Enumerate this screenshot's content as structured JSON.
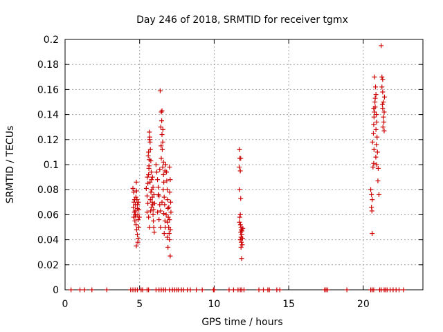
{
  "chart_data": {
    "type": "scatter",
    "title": "Day 246 of 2018, SRMTID for receiver tgmx",
    "xlabel": "GPS time / hours",
    "ylabel": "SRMTID / TECUs",
    "xlim": [
      0,
      24
    ],
    "ylim": [
      0,
      0.2
    ],
    "xticks": [
      0,
      5,
      10,
      15,
      20
    ],
    "xtick_labels": [
      "0",
      "5",
      "10",
      "15",
      "20"
    ],
    "yticks": [
      0,
      0.02,
      0.04,
      0.06,
      0.08,
      0.1,
      0.12,
      0.14,
      0.16,
      0.18,
      0.2
    ],
    "ytick_labels": [
      "0",
      "0.02",
      "0.04",
      "0.06",
      "0.08",
      "0.1",
      "0.12",
      "0.14",
      "0.16",
      "0.18",
      "0.2"
    ],
    "grid": true,
    "marker": "+",
    "color": "#cc0000",
    "series": [
      {
        "name": "SRMTID",
        "points": [
          [
            4.55,
            0.081
          ],
          [
            4.6,
            0.078
          ],
          [
            4.62,
            0.07
          ],
          [
            4.58,
            0.066
          ],
          [
            4.65,
            0.062
          ],
          [
            4.6,
            0.058
          ],
          [
            4.68,
            0.055
          ],
          [
            4.7,
            0.06
          ],
          [
            4.72,
            0.068
          ],
          [
            4.75,
            0.074
          ],
          [
            4.78,
            0.086
          ],
          [
            4.8,
            0.079
          ],
          [
            4.82,
            0.072
          ],
          [
            4.85,
            0.065
          ],
          [
            4.88,
            0.06
          ],
          [
            4.9,
            0.056
          ],
          [
            4.76,
            0.052
          ],
          [
            4.8,
            0.048
          ],
          [
            4.85,
            0.044
          ],
          [
            4.9,
            0.041
          ],
          [
            4.78,
            0.035
          ],
          [
            4.92,
            0.07
          ],
          [
            4.95,
            0.064
          ],
          [
            4.98,
            0.058
          ],
          [
            4.7,
            0.063
          ],
          [
            4.74,
            0.059
          ],
          [
            4.86,
            0.068
          ],
          [
            4.66,
            0.072
          ],
          [
            4.94,
            0.05
          ],
          [
            4.88,
            0.038
          ],
          [
            5.45,
            0.081
          ],
          [
            5.5,
            0.075
          ],
          [
            5.55,
            0.069
          ],
          [
            5.5,
            0.062
          ],
          [
            5.55,
            0.085
          ],
          [
            5.6,
            0.092
          ],
          [
            5.62,
            0.097
          ],
          [
            5.65,
            0.104
          ],
          [
            5.6,
            0.11
          ],
          [
            5.68,
            0.122
          ],
          [
            5.65,
            0.126
          ],
          [
            5.7,
            0.118
          ],
          [
            5.72,
            0.112
          ],
          [
            5.75,
            0.103
          ],
          [
            5.78,
            0.094
          ],
          [
            5.8,
            0.088
          ],
          [
            5.82,
            0.08
          ],
          [
            5.85,
            0.074
          ],
          [
            5.88,
            0.068
          ],
          [
            5.9,
            0.06
          ],
          [
            5.92,
            0.055
          ],
          [
            5.95,
            0.05
          ],
          [
            5.98,
            0.046
          ],
          [
            5.6,
            0.058
          ],
          [
            5.66,
            0.05
          ],
          [
            5.74,
            0.063
          ],
          [
            5.84,
            0.07
          ],
          [
            5.7,
            0.086
          ],
          [
            5.76,
            0.078
          ],
          [
            5.8,
            0.066
          ],
          [
            5.63,
            0.099
          ],
          [
            5.58,
            0.107
          ],
          [
            5.9,
            0.082
          ],
          [
            5.86,
            0.09
          ],
          [
            5.72,
            0.072
          ],
          [
            5.94,
            0.064
          ],
          [
            5.67,
            0.12
          ],
          [
            5.52,
            0.09
          ],
          [
            5.96,
            0.076
          ],
          [
            6.0,
            0.069
          ],
          [
            6.1,
            0.1
          ],
          [
            6.15,
            0.094
          ],
          [
            6.2,
            0.088
          ],
          [
            6.25,
            0.082
          ],
          [
            6.3,
            0.075
          ],
          [
            6.35,
            0.068
          ],
          [
            6.2,
            0.062
          ],
          [
            6.3,
            0.056
          ],
          [
            6.4,
            0.05
          ],
          [
            6.38,
            0.159
          ],
          [
            6.45,
            0.142
          ],
          [
            6.5,
            0.143
          ],
          [
            6.48,
            0.135
          ],
          [
            6.42,
            0.13
          ],
          [
            6.5,
            0.124
          ],
          [
            6.55,
            0.118
          ],
          [
            6.52,
            0.112
          ],
          [
            6.45,
            0.105
          ],
          [
            6.55,
            0.098
          ],
          [
            6.6,
            0.092
          ],
          [
            6.62,
            0.086
          ],
          [
            6.58,
            0.08
          ],
          [
            6.65,
            0.074
          ],
          [
            6.68,
            0.068
          ],
          [
            6.62,
            0.061
          ],
          [
            6.7,
            0.055
          ],
          [
            6.72,
            0.05
          ],
          [
            6.65,
            0.045
          ],
          [
            6.44,
            0.115
          ],
          [
            6.56,
            0.128
          ],
          [
            6.35,
            0.096
          ],
          [
            6.25,
            0.076
          ],
          [
            6.6,
            0.102
          ],
          [
            6.7,
            0.095
          ],
          [
            6.5,
            0.07
          ],
          [
            6.4,
            0.063
          ],
          [
            6.75,
            0.1
          ],
          [
            6.8,
            0.094
          ],
          [
            6.82,
            0.087
          ],
          [
            6.85,
            0.08
          ],
          [
            6.88,
            0.072
          ],
          [
            6.9,
            0.065
          ],
          [
            6.92,
            0.058
          ],
          [
            6.95,
            0.05
          ],
          [
            6.98,
            0.045
          ],
          [
            7.0,
            0.04
          ],
          [
            6.9,
            0.034
          ],
          [
            7.05,
            0.027
          ],
          [
            6.85,
            0.042
          ],
          [
            7.0,
            0.098
          ],
          [
            7.05,
            0.088
          ],
          [
            7.02,
            0.078
          ],
          [
            7.08,
            0.07
          ],
          [
            7.1,
            0.062
          ],
          [
            7.0,
            0.056
          ],
          [
            7.06,
            0.048
          ],
          [
            6.78,
            0.06
          ],
          [
            6.88,
            0.054
          ],
          [
            6.96,
            0.066
          ],
          [
            11.7,
            0.112
          ],
          [
            11.72,
            0.105
          ],
          [
            11.68,
            0.098
          ],
          [
            11.75,
            0.095
          ],
          [
            11.7,
            0.08
          ],
          [
            11.78,
            0.073
          ],
          [
            11.75,
            0.06
          ],
          [
            11.7,
            0.054
          ],
          [
            11.8,
            0.05
          ],
          [
            11.82,
            0.048
          ],
          [
            11.78,
            0.046
          ],
          [
            11.85,
            0.044
          ],
          [
            11.8,
            0.042
          ],
          [
            11.75,
            0.04
          ],
          [
            11.82,
            0.038
          ],
          [
            11.88,
            0.036
          ],
          [
            11.8,
            0.034
          ],
          [
            11.76,
            0.052
          ],
          [
            11.86,
            0.047
          ],
          [
            11.9,
            0.041
          ],
          [
            11.72,
            0.058
          ],
          [
            11.84,
            0.025
          ],
          [
            11.92,
            0.049
          ],
          [
            11.78,
            0.105
          ],
          [
            20.5,
            0.08
          ],
          [
            20.55,
            0.076
          ],
          [
            20.6,
            0.072
          ],
          [
            20.55,
            0.066
          ],
          [
            20.58,
            0.063
          ],
          [
            20.6,
            0.045
          ],
          [
            20.65,
            0.098
          ],
          [
            20.7,
            0.101
          ],
          [
            20.62,
            0.118
          ],
          [
            20.68,
            0.125
          ],
          [
            20.7,
            0.132
          ],
          [
            20.72,
            0.138
          ],
          [
            20.75,
            0.142
          ],
          [
            20.7,
            0.145
          ],
          [
            20.78,
            0.15
          ],
          [
            20.8,
            0.153
          ],
          [
            20.75,
            0.17
          ],
          [
            20.82,
            0.162
          ],
          [
            20.85,
            0.156
          ],
          [
            20.8,
            0.146
          ],
          [
            20.88,
            0.14
          ],
          [
            20.9,
            0.134
          ],
          [
            20.85,
            0.128
          ],
          [
            20.92,
            0.122
          ],
          [
            20.88,
            0.116
          ],
          [
            20.95,
            0.11
          ],
          [
            20.9,
            0.1
          ],
          [
            21.0,
            0.097
          ],
          [
            20.98,
            0.087
          ],
          [
            21.05,
            0.076
          ],
          [
            20.72,
            0.112
          ],
          [
            20.84,
            0.106
          ],
          [
            21.2,
            0.195
          ],
          [
            21.25,
            0.17
          ],
          [
            21.3,
            0.168
          ],
          [
            21.25,
            0.162
          ],
          [
            21.3,
            0.158
          ],
          [
            21.35,
            0.15
          ],
          [
            21.3,
            0.145
          ],
          [
            21.4,
            0.142
          ],
          [
            21.35,
            0.138
          ],
          [
            21.38,
            0.134
          ],
          [
            21.32,
            0.13
          ],
          [
            21.4,
            0.127
          ],
          [
            21.28,
            0.148
          ],
          [
            21.42,
            0.154
          ]
        ],
        "rug": [
          0.4,
          1.0,
          1.3,
          1.8,
          2.8,
          4.4,
          4.55,
          4.7,
          4.85,
          5.1,
          5.2,
          5.5,
          5.6,
          6.1,
          6.3,
          6.45,
          6.6,
          6.75,
          7.0,
          7.2,
          7.35,
          7.5,
          7.6,
          7.8,
          7.95,
          8.2,
          8.4,
          8.8,
          9.2,
          9.95,
          10.0,
          11.0,
          11.3,
          11.6,
          11.75,
          11.85,
          12.0,
          13.0,
          13.3,
          13.6,
          13.7,
          14.2,
          14.4,
          17.4,
          17.5,
          17.6,
          18.9,
          20.5,
          20.6,
          20.7,
          21.1,
          21.2,
          21.4,
          21.5,
          21.6,
          21.8,
          22.0,
          22.2,
          22.4,
          22.7
        ]
      }
    ]
  }
}
